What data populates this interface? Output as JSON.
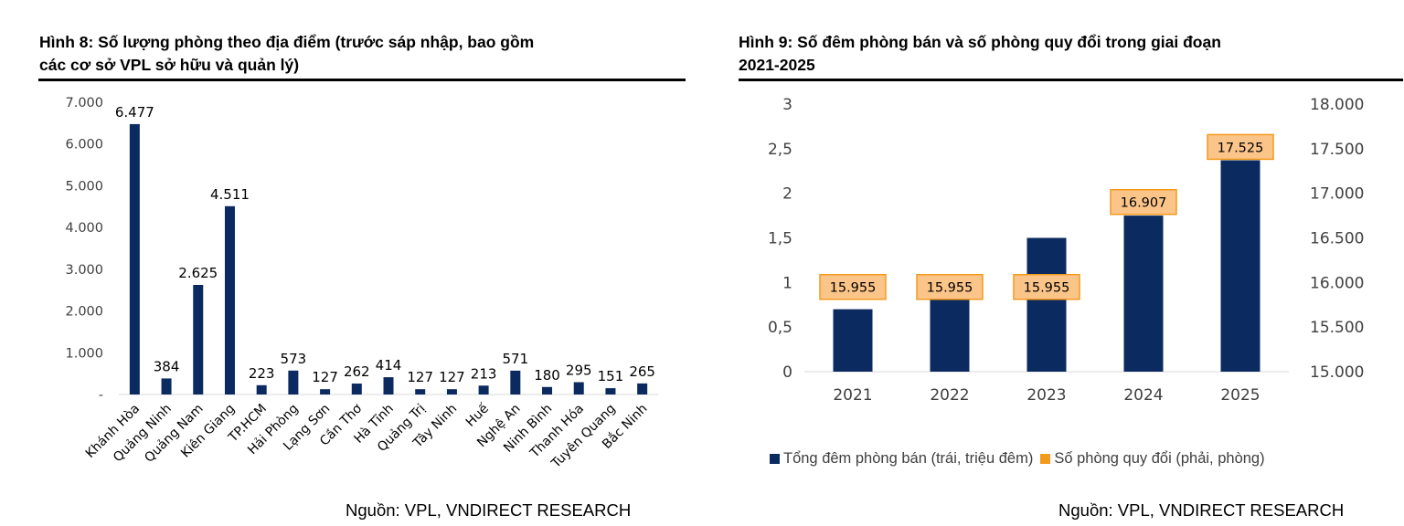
{
  "left_panel": {
    "title": "Hình 8: Số lượng phòng theo địa điểm (trước sáp nhập, bao gồm\ncác cơ sở VPL sở hữu và quản lý)",
    "source": "Nguồn: VPL, VNDIRECT RESEARCH"
  },
  "right_panel": {
    "title": "Hình 9: Số đêm phòng bán và số phòng quy đổi trong giai đoạn\n2021-2025",
    "source": "Nguồn: VPL, VNDIRECT RESEARCH"
  },
  "colors": {
    "bar": "#0b2a5f",
    "label_fill": "#fbc58a",
    "label_border": "#f39a1d",
    "axis": "#d9d9d9"
  },
  "chart_data": [
    {
      "type": "bar",
      "categories": [
        "Khánh Hòa",
        "Quảng Ninh",
        "Quảng Nam",
        "Kiên Giang",
        "TP.HCM",
        "Hải Phòng",
        "Lạng Sơn",
        "Cần Thơ",
        "Hà Tĩnh",
        "Quảng Trị",
        "Tây Ninh",
        "Huế",
        "Nghệ An",
        "Ninh Bình",
        "Thanh Hóa",
        "Tuyên Quang",
        "Bắc Ninh"
      ],
      "values": [
        6477,
        384,
        2625,
        4511,
        223,
        573,
        127,
        262,
        414,
        127,
        127,
        213,
        571,
        180,
        295,
        151,
        265
      ],
      "value_labels": [
        "6.477",
        "384",
        "2.625",
        "4.511",
        "223",
        "573",
        "127",
        "262",
        "414",
        "127",
        "127",
        "213",
        "571",
        "180",
        "295",
        "151",
        "265"
      ],
      "ylim": [
        0,
        7000
      ],
      "yticks": [
        0,
        1000,
        2000,
        3000,
        4000,
        5000,
        6000,
        7000
      ],
      "ytick_labels": [
        "-",
        "1.000",
        "2.000",
        "3.000",
        "4.000",
        "5.000",
        "6.000",
        "7.000"
      ],
      "grid": false,
      "legend": "none"
    },
    {
      "type": "bar",
      "categories": [
        "2021",
        "2022",
        "2023",
        "2024",
        "2025"
      ],
      "series": [
        {
          "name": "Tổng đêm phòng bán (trái, triệu đêm)",
          "axis": "left",
          "values": [
            0.7,
            0.82,
            1.5,
            1.75,
            2.37
          ]
        },
        {
          "name": "Số phòng quy đổi (phải, phòng)",
          "axis": "right",
          "values": [
            15955,
            15955,
            15955,
            16907,
            17525
          ],
          "value_labels": [
            "15.955",
            "15.955",
            "15.955",
            "16.907",
            "17.525"
          ]
        }
      ],
      "y_left": {
        "ylim": [
          0,
          3
        ],
        "ticks": [
          0,
          0.5,
          1,
          1.5,
          2,
          2.5,
          3
        ],
        "tick_labels": [
          "0",
          "0,5",
          "1",
          "1,5",
          "2",
          "2,5",
          "3"
        ]
      },
      "y_right": {
        "ylim": [
          15000,
          18000
        ],
        "ticks": [
          15000,
          15500,
          16000,
          16500,
          17000,
          17500,
          18000
        ],
        "tick_labels": [
          "15.000",
          "15.500",
          "16.000",
          "16.500",
          "17.000",
          "17.500",
          "18.000"
        ]
      },
      "grid": false,
      "legend": "bottom"
    }
  ]
}
